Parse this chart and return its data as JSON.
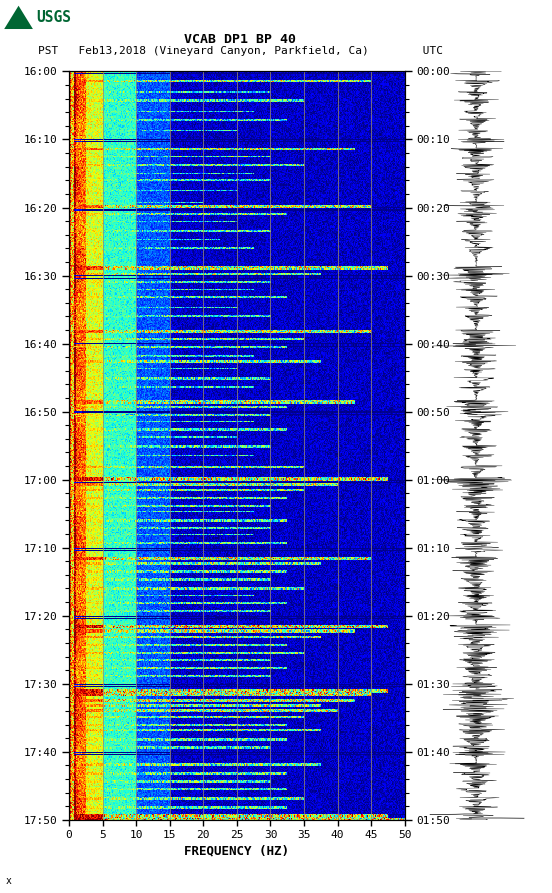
{
  "title_line1": "VCAB DP1 BP 40",
  "title_line2": "PST   Feb13,2018 (Vineyard Canyon, Parkfield, Ca)        UTC",
  "xlabel": "FREQUENCY (HZ)",
  "freq_min": 0,
  "freq_max": 50,
  "ytick_pst": [
    "16:00",
    "16:10",
    "16:20",
    "16:30",
    "16:40",
    "16:50",
    "17:00",
    "17:10",
    "17:20",
    "17:30",
    "17:40",
    "17:50"
  ],
  "ytick_utc": [
    "00:00",
    "00:10",
    "00:20",
    "00:30",
    "00:40",
    "00:50",
    "01:00",
    "01:10",
    "01:20",
    "01:30",
    "01:40",
    "01:50"
  ],
  "xticks": [
    0,
    5,
    10,
    15,
    20,
    25,
    30,
    35,
    40,
    45,
    50
  ],
  "vgrid_freqs": [
    5,
    10,
    15,
    20,
    25,
    30,
    35,
    40,
    45
  ],
  "fig_width": 5.52,
  "fig_height": 8.93,
  "duration_minutes": 110
}
